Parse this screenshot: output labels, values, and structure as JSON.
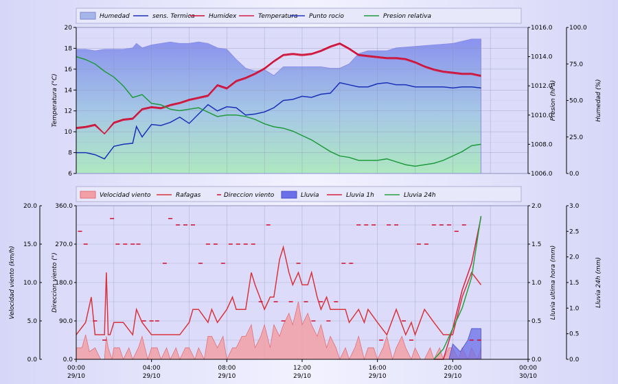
{
  "colors": {
    "humedad": "#8e95ee",
    "sens_termica": "#1a2fb8",
    "humidex": "#cc0a2e",
    "temperatura": "#d21e46",
    "punto_rocio": "#2637c0",
    "presion": "#1d9a3a",
    "velocidad": "#f2a0a6",
    "rafagas": "#d8323a",
    "direccion": "#d20a28",
    "lluvia": "#6b6fe8",
    "lluvia1h": "#d82040",
    "lluvia24h": "#22a03c"
  },
  "legend_top": [
    "Humedad",
    "sens. Termica",
    "Humidex",
    "Temperatura",
    "Punto rocio",
    "Presion relativa"
  ],
  "legend_bottom": [
    "Velocidad viento",
    "Rafagas",
    "Direccion viento",
    "Lluvia",
    "Lluvia 1h",
    "Lluvia 24h"
  ],
  "x_ticks": [
    {
      "time": "00:00",
      "date": "29/10"
    },
    {
      "time": "04:00",
      "date": "29/10"
    },
    {
      "time": "08:00",
      "date": "29/10"
    },
    {
      "time": "12:00",
      "date": "29/10"
    },
    {
      "time": "16:00",
      "date": "29/10"
    },
    {
      "time": "20:00",
      "date": "29/10"
    },
    {
      "time": "00:00",
      "date": "30/10"
    }
  ],
  "chart_data": [
    {
      "type": "line",
      "x_unit": "hours since 29/10 00:00",
      "xlim": [
        0,
        24
      ],
      "axes": {
        "temperature": {
          "label": "Temperatura (°C)",
          "lim": [
            6,
            20
          ],
          "ticks": [
            "6",
            "8",
            "10",
            "12",
            "14",
            "16",
            "18",
            "20"
          ]
        },
        "pressure": {
          "label": "Presion (hPa)",
          "lim": [
            1006,
            1016
          ],
          "ticks": [
            "1006.0",
            "1008.0",
            "1010.0",
            "1012.0",
            "1014.0",
            "1016.0"
          ]
        },
        "humidity": {
          "label": "Humedad (%)",
          "lim": [
            0,
            100
          ],
          "ticks": [
            "0.0",
            "25.0",
            "50.0",
            "75.0",
            "100.0"
          ]
        }
      },
      "series": [
        {
          "name": "Humedad",
          "axis": "humidity",
          "kind": "area",
          "x": [
            0,
            0.5,
            1,
            1.5,
            2,
            2.5,
            3,
            3.2,
            3.5,
            4,
            5,
            5.5,
            6,
            6.5,
            7,
            7.5,
            8,
            8.5,
            9,
            9.5,
            10,
            10.5,
            11,
            11.5,
            12,
            12.5,
            13,
            13.5,
            14,
            14.5,
            15,
            15.5,
            16,
            16.5,
            17,
            18,
            19,
            20,
            21,
            21.5
          ],
          "y": [
            85,
            85,
            84,
            85,
            85,
            85,
            86,
            89,
            86,
            88,
            90,
            89,
            89,
            90,
            89,
            86,
            85,
            78,
            72,
            70,
            71,
            67,
            73,
            73,
            73,
            73,
            73,
            72,
            72,
            75,
            82,
            84,
            84,
            84,
            86,
            87,
            88,
            89,
            92,
            92
          ]
        },
        {
          "name": "sens. Termica",
          "axis": "temperature",
          "x": [
            0,
            0.5,
            1,
            1.5,
            2,
            2.5,
            3,
            3.2,
            3.5,
            4,
            4.5,
            5,
            5.5,
            6,
            6.5,
            7,
            7.5,
            8,
            8.5,
            9,
            9.5,
            10,
            10.5,
            11,
            11.5,
            12,
            12.5,
            13,
            13.5,
            14,
            14.5,
            15,
            15.5,
            16,
            16.5,
            17,
            17.5,
            18,
            18.5,
            19,
            19.5,
            20,
            20.5,
            21,
            21.5
          ],
          "y": [
            8.0,
            8.0,
            7.8,
            7.4,
            8.6,
            8.8,
            8.9,
            10.5,
            9.5,
            10.7,
            10.6,
            10.9,
            11.4,
            10.8,
            11.7,
            12.6,
            12.0,
            12.4,
            12.3,
            11.6,
            11.7,
            11.9,
            12.3,
            13.0,
            13.1,
            13.4,
            13.3,
            13.6,
            13.7,
            14.7,
            14.5,
            14.3,
            14.3,
            14.6,
            14.7,
            14.5,
            14.5,
            14.3,
            14.3,
            14.3,
            14.3,
            14.2,
            14.3,
            14.3,
            14.2
          ]
        },
        {
          "name": "Humidex",
          "axis": "temperature",
          "x": [
            0,
            0.5,
            1,
            1.5,
            2,
            2.5,
            3,
            3.5,
            4,
            4.5,
            5,
            5.5,
            6,
            6.5,
            7,
            7.5,
            8,
            8.5,
            9,
            9.5,
            10,
            10.5,
            11,
            11.5,
            12,
            12.5,
            13,
            13.5,
            14,
            14.5,
            15,
            15.5,
            16,
            16.5,
            17,
            17.5,
            18,
            18.5,
            19,
            19.5,
            20,
            20.5,
            21,
            21.5
          ],
          "y": [
            10.4,
            10.5,
            10.7,
            9.8,
            10.9,
            11.2,
            11.3,
            12.2,
            12.4,
            12.3,
            12.6,
            12.8,
            13.1,
            13.3,
            13.5,
            14.5,
            14.2,
            14.9,
            15.2,
            15.6,
            16.1,
            16.8,
            17.4,
            17.5,
            17.4,
            17.5,
            17.8,
            18.2,
            18.5,
            18.0,
            17.4,
            17.3,
            17.2,
            17.1,
            17.1,
            17.0,
            16.7,
            16.3,
            16.0,
            15.8,
            15.7,
            15.6,
            15.6,
            15.4
          ]
        },
        {
          "name": "Temperatura",
          "axis": "temperature",
          "x": [
            0,
            0.5,
            1,
            1.5,
            2,
            2.5,
            3,
            3.5,
            4,
            4.5,
            5,
            5.5,
            6,
            6.5,
            7,
            7.5,
            8,
            8.5,
            9,
            9.5,
            10,
            10.5,
            11,
            11.5,
            12,
            12.5,
            13,
            13.5,
            14,
            14.5,
            15,
            15.5,
            16,
            16.5,
            17,
            17.5,
            18,
            18.5,
            19,
            19.5,
            20,
            20.5,
            21,
            21.5
          ],
          "y": [
            10.3,
            10.4,
            10.6,
            9.8,
            10.8,
            11.1,
            11.2,
            12.1,
            12.3,
            12.2,
            12.5,
            12.7,
            13.0,
            13.2,
            13.4,
            14.4,
            14.1,
            14.8,
            15.1,
            15.5,
            16.0,
            16.7,
            17.3,
            17.4,
            17.3,
            17.4,
            17.7,
            18.1,
            18.4,
            17.9,
            17.3,
            17.2,
            17.1,
            17.0,
            17.0,
            16.9,
            16.6,
            16.2,
            15.9,
            15.7,
            15.6,
            15.5,
            15.5,
            15.3
          ]
        },
        {
          "name": "Presion relativa",
          "axis": "pressure",
          "x": [
            0,
            0.5,
            1,
            1.5,
            2,
            2.5,
            3,
            3.5,
            4,
            4.5,
            5,
            5.5,
            6,
            6.5,
            7,
            7.5,
            8,
            8.5,
            9,
            9.5,
            10,
            10.5,
            11,
            11.5,
            12,
            12.5,
            13,
            13.5,
            14,
            14.5,
            15,
            15.5,
            16,
            16.5,
            17,
            17.5,
            18,
            18.5,
            19,
            19.5,
            20,
            20.5,
            21,
            21.5
          ],
          "y": [
            1014.0,
            1013.8,
            1013.5,
            1013.0,
            1012.6,
            1012.0,
            1011.2,
            1011.4,
            1010.8,
            1010.7,
            1010.4,
            1010.3,
            1010.4,
            1010.5,
            1010.2,
            1009.9,
            1010.0,
            1010.0,
            1009.9,
            1009.7,
            1009.4,
            1009.2,
            1009.1,
            1008.9,
            1008.6,
            1008.3,
            1007.9,
            1007.5,
            1007.2,
            1007.1,
            1006.9,
            1006.9,
            1006.9,
            1007.0,
            1006.8,
            1006.6,
            1006.5,
            1006.6,
            1006.7,
            1006.9,
            1007.2,
            1007.5,
            1007.9,
            1008.0
          ]
        }
      ]
    },
    {
      "type": "line",
      "x_unit": "hours since 29/10 00:00",
      "xlim": [
        0,
        24
      ],
      "axes": {
        "velocity": {
          "label": "Velocidad viento (km/h)",
          "lim": [
            0,
            20
          ],
          "ticks": [
            "0.0",
            "5.0",
            "10.0",
            "15.0",
            "20.0"
          ]
        },
        "direction": {
          "label": "Direccion viento (°)",
          "lim": [
            0,
            360
          ],
          "ticks": [
            "0.0",
            "90.0",
            "180.0",
            "270.0",
            "360.0"
          ]
        },
        "rain_hour": {
          "label": "Lluvia ultima hora (mm)",
          "lim": [
            0,
            2
          ],
          "ticks": [
            "0.0",
            "0.5",
            "1.0",
            "1.5",
            "2.0"
          ]
        },
        "rain_24h": {
          "label": "Lluvia 24h (mm)",
          "lim": [
            0,
            3
          ],
          "ticks": [
            "0.0",
            "0.5",
            "1.0",
            "1.5",
            "2.0",
            "2.5",
            "3.0"
          ]
        }
      },
      "series": [
        {
          "name": "Velocidad viento",
          "axis": "velocity",
          "kind": "area",
          "x": [
            0,
            0.3,
            0.5,
            0.7,
            1,
            1.3,
            1.5,
            1.6,
            1.7,
            1.9,
            2,
            2.3,
            2.5,
            2.8,
            3,
            3.3,
            3.5,
            3.8,
            4,
            4.3,
            4.5,
            4.8,
            5,
            5.3,
            5.5,
            5.8,
            6,
            6.3,
            6.5,
            6.8,
            7,
            7.2,
            7.5,
            7.8,
            8,
            8.3,
            8.5,
            8.8,
            9,
            9.3,
            9.5,
            9.8,
            10,
            10.3,
            10.5,
            10.8,
            11,
            11.3,
            11.5,
            11.8,
            12,
            12.3,
            12.5,
            12.8,
            13,
            13.3,
            13.5,
            13.8,
            14,
            14.3,
            14.5,
            14.8,
            15,
            15.3,
            15.5,
            15.8,
            16,
            16.3,
            16.5,
            16.8,
            17,
            17.3,
            17.5,
            17.8,
            18,
            18.3,
            18.5,
            18.8,
            19,
            19.3,
            19.5,
            19.8,
            20,
            20.3,
            20.5,
            20.8,
            21,
            21.3,
            21.5
          ],
          "y": [
            1.5,
            1.5,
            3.2,
            1.0,
            1.5,
            0,
            0,
            3.0,
            1.5,
            0,
            1.5,
            1.5,
            0,
            1.5,
            0,
            1.5,
            3.0,
            0,
            1.5,
            1.5,
            0,
            1.5,
            0,
            1.5,
            0,
            1.5,
            1.5,
            0,
            1.5,
            0,
            3.0,
            3.0,
            1.5,
            3.0,
            0,
            1.5,
            1.5,
            3.0,
            3.0,
            4.5,
            1.5,
            3.0,
            4.5,
            1.5,
            4.5,
            3.0,
            4.5,
            6.0,
            4.5,
            7.5,
            4.5,
            6.0,
            4.5,
            3.0,
            4.5,
            1.5,
            3.0,
            1.5,
            0,
            1.5,
            0,
            1.5,
            3.0,
            0,
            1.5,
            1.5,
            0,
            1.5,
            3.0,
            0,
            1.5,
            3.0,
            1.5,
            0,
            1.5,
            0,
            0,
            1.5,
            0,
            1.5,
            0,
            1.5,
            1.5,
            0,
            1.5,
            0,
            1.5,
            0,
            1.5
          ]
        },
        {
          "name": "Rafagas",
          "axis": "velocity",
          "x": [
            0,
            0.5,
            0.8,
            1,
            1.3,
            1.5,
            1.6,
            1.7,
            1.8,
            2,
            2.5,
            3,
            3.2,
            3.5,
            4,
            4.5,
            5,
            5.5,
            6,
            6.2,
            6.5,
            7,
            7.2,
            7.5,
            8,
            8.3,
            8.5,
            9,
            9.3,
            9.5,
            10,
            10.3,
            10.5,
            10.8,
            11,
            11.3,
            11.5,
            11.8,
            12,
            12.3,
            12.5,
            12.8,
            13,
            13.3,
            13.5,
            14,
            14.3,
            14.5,
            15,
            15.3,
            15.5,
            16,
            16.5,
            17,
            17.5,
            17.8,
            18,
            18.5,
            19,
            19.5,
            20,
            20.5,
            21,
            21.5
          ],
          "y": [
            3.2,
            4.8,
            8.1,
            3.2,
            3.2,
            3.2,
            11.3,
            3.2,
            3.2,
            4.8,
            4.8,
            3.2,
            6.5,
            4.8,
            3.2,
            3.2,
            3.2,
            3.2,
            4.8,
            6.5,
            6.5,
            4.8,
            6.5,
            4.8,
            6.5,
            8.1,
            6.5,
            6.5,
            11.3,
            9.7,
            6.5,
            8.1,
            8.1,
            13.0,
            14.6,
            11.3,
            9.7,
            11.3,
            9.7,
            9.7,
            11.3,
            8.1,
            6.5,
            8.1,
            6.5,
            6.5,
            6.5,
            4.8,
            6.5,
            4.8,
            6.5,
            4.8,
            3.2,
            6.5,
            3.2,
            4.8,
            3.2,
            6.5,
            4.8,
            3.2,
            3.2,
            8.1,
            11.3,
            9.7
          ]
        },
        {
          "name": "Lluvia",
          "axis": "rain_hour",
          "kind": "area",
          "x": [
            19.8,
            20,
            20.4,
            20.8,
            21,
            21.5
          ],
          "y": [
            0,
            0.2,
            0.1,
            0.25,
            0.4,
            0.4
          ]
        },
        {
          "name": "Lluvia 1h",
          "axis": "rain_hour",
          "x": [
            19,
            19.5,
            20,
            20.5,
            21,
            21.5
          ],
          "y": [
            0,
            0,
            0.4,
            0.9,
            1.25,
            1.85
          ]
        },
        {
          "name": "Lluvia 24h",
          "axis": "rain_24h",
          "x": [
            19,
            19.5,
            20,
            20.5,
            21,
            21.5
          ],
          "y": [
            0,
            0.2,
            0.6,
            1.0,
            1.6,
            2.8
          ]
        }
      ],
      "direccion_viento": {
        "axis": "direction",
        "x": [
          0.2,
          0.5,
          1,
          1.5,
          1.9,
          2.2,
          2.6,
          3,
          3.3,
          3.6,
          4,
          4.3,
          4.7,
          5,
          5.4,
          5.8,
          6.2,
          6.6,
          7,
          7.4,
          7.8,
          8.2,
          8.6,
          9,
          9.4,
          9.8,
          10.2,
          10.6,
          11,
          11.4,
          11.8,
          12.2,
          12.6,
          13,
          13.4,
          13.8,
          14.2,
          14.6,
          15,
          15.4,
          15.8,
          16.2,
          16.6,
          17,
          17.4,
          17.8,
          18.2,
          18.6,
          19,
          19.4,
          19.8,
          20.2,
          20.6,
          21,
          21.4
        ],
        "y": [
          300,
          270,
          90,
          45,
          330,
          270,
          270,
          270,
          270,
          90,
          90,
          90,
          225,
          330,
          315,
          315,
          315,
          225,
          270,
          270,
          225,
          270,
          270,
          270,
          270,
          135,
          315,
          135,
          90,
          135,
          225,
          135,
          90,
          135,
          90,
          135,
          225,
          225,
          315,
          315,
          315,
          45,
          315,
          315,
          90,
          45,
          270,
          270,
          315,
          315,
          315,
          300,
          315,
          45,
          45
        ]
      }
    }
  ]
}
